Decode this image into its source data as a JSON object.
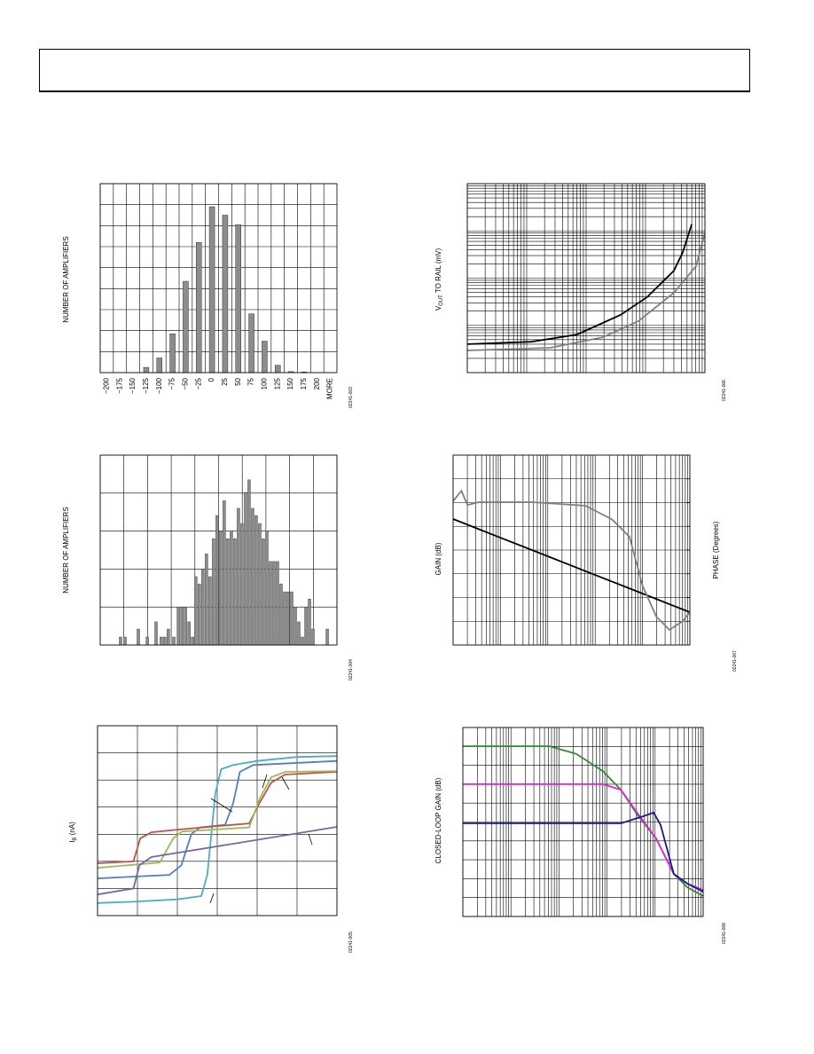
{
  "chart_data": [
    {
      "type": "bar",
      "y_label": "NUMBER OF AMPLIFIERS",
      "code": "02241-003",
      "categories": [
        "−200",
        "−175",
        "−150",
        "−125",
        "−100",
        "−75",
        "−50",
        "−25",
        "0",
        "25",
        "50",
        "75",
        "100",
        "125",
        "150",
        "175",
        "200",
        "MORE"
      ],
      "values": [
        0,
        0,
        0,
        0.25,
        0.7,
        1.85,
        4.35,
        6.2,
        7.9,
        7.5,
        7.05,
        2.8,
        1.5,
        0.35,
        0.05,
        0.03,
        0,
        0
      ],
      "color": "#8c8c8c",
      "ylim": [
        0,
        9
      ],
      "yticks": [
        0,
        1,
        2,
        3,
        4,
        5,
        6,
        7,
        8,
        9
      ],
      "grid": true
    },
    {
      "type": "bar",
      "y_label": "NUMBER OF AMPLIFIERS",
      "code": "02241-004",
      "x": [
        0.86,
        1.05,
        1.61,
        1.99,
        2.36,
        2.58,
        2.73,
        2.88,
        3.11,
        3.3,
        3.45,
        3.6,
        3.75,
        3.9,
        4.04,
        4.19,
        4.34,
        4.49,
        4.64,
        4.79,
        4.94,
        5.09,
        5.24,
        5.39,
        5.54,
        5.69,
        5.84,
        5.99,
        6.14,
        6.29,
        6.44,
        6.59,
        6.74,
        6.89,
        7.04,
        7.19,
        7.34,
        7.49,
        7.64,
        7.79,
        7.94,
        8.09,
        8.24,
        8.39,
        8.54,
        8.69,
        8.84,
        8.99,
        9.59
      ],
      "values": [
        0.21,
        0.21,
        0.42,
        0.21,
        0.61,
        0.21,
        0.21,
        0.42,
        0.21,
        1.0,
        1.0,
        1.0,
        0.61,
        0.21,
        1.8,
        1.61,
        2.0,
        2.4,
        1.8,
        2.8,
        3.41,
        3.01,
        3.8,
        2.8,
        3.01,
        2.8,
        3.6,
        3.2,
        4.02,
        4.35,
        3.6,
        3.41,
        3.2,
        2.8,
        3.01,
        2.2,
        2.2,
        2.2,
        1.61,
        1.4,
        1.4,
        1.4,
        1.0,
        0.61,
        0.21,
        1.0,
        1.21,
        0.42,
        0.42
      ],
      "color": "#8c8c8c",
      "xlim": [
        0,
        10
      ],
      "xticks": [
        0,
        1,
        2,
        3,
        4,
        5,
        6,
        7,
        8,
        9,
        10
      ],
      "ylim": [
        0,
        5
      ],
      "yticks": [
        0,
        1,
        2,
        3,
        4,
        5
      ],
      "grid": true
    },
    {
      "type": "line",
      "y_label": "I",
      "y_label_sub": "B",
      "y_label_rest": " (nA)",
      "code": "02241-005",
      "xlim": [
        0,
        6
      ],
      "xticks": [
        0,
        1,
        2,
        3,
        4,
        5,
        6
      ],
      "ylim": [
        0,
        7
      ],
      "yticks": [
        0,
        1,
        2,
        3,
        4,
        5,
        6,
        7
      ],
      "grid": true,
      "series": [
        {
          "color": "#4bacc6",
          "x": [
            0,
            1,
            2,
            2.6,
            2.75,
            2.85,
            2.95,
            3.1,
            3.4,
            4,
            5,
            6
          ],
          "values": [
            0.46,
            0.52,
            0.6,
            0.72,
            1.5,
            3,
            4.5,
            5.4,
            5.55,
            5.7,
            5.85,
            5.88
          ]
        },
        {
          "color": "#4f81bd",
          "x": [
            0,
            1.8,
            2.1,
            2.35,
            2.57,
            3.2,
            3.4,
            3.57,
            3.9,
            6
          ],
          "values": [
            1.37,
            1.5,
            1.85,
            3.0,
            3.25,
            3.35,
            4.15,
            5.3,
            5.55,
            5.7
          ]
        },
        {
          "color": "#c0504d",
          "x": [
            0,
            0.9,
            1.07,
            1.35,
            2.0,
            3.8,
            4.06,
            4.35,
            4.7,
            6
          ],
          "values": [
            1.93,
            2.0,
            2.85,
            3.07,
            3.17,
            3.4,
            4.15,
            4.9,
            5.2,
            5.3
          ]
        },
        {
          "color": "#9bbb59",
          "x": [
            0,
            1.56,
            1.9,
            2.12,
            3.8,
            4.06,
            4.35,
            4.7,
            6
          ],
          "values": [
            1.76,
            1.96,
            2.85,
            3.1,
            3.25,
            4.3,
            5.1,
            5.3,
            5.33
          ]
        },
        {
          "color": "#8064a2",
          "x": [
            0,
            0.9,
            1.05,
            1.35,
            6
          ],
          "values": [
            0.78,
            1.0,
            1.86,
            2.16,
            3.27
          ]
        }
      ]
    },
    {
      "type": "line",
      "y_label": "V",
      "y_label_sub": "OUT",
      "y_label_rest": " TO RAIL (mV)",
      "code": "02241-006",
      "xscale": "log",
      "yscale": "log",
      "xlim": [
        1,
        10000
      ],
      "xticks": [
        1,
        10,
        100,
        1000,
        10000
      ],
      "ylim": [
        1,
        10000
      ],
      "yticks": [
        1,
        10,
        100,
        1000,
        10000
      ],
      "grid": true,
      "series": [
        {
          "color": "#000000",
          "x": [
            1,
            12,
            70,
            380,
            1070,
            3000,
            4200,
            6000
          ],
          "values": [
            4,
            4.5,
            6.4,
            16.6,
            40,
            144,
            345,
            1380
          ]
        },
        {
          "color": "#808080",
          "x": [
            1,
            25,
            190,
            760,
            3000,
            7100,
            10000
          ],
          "values": [
            2.95,
            3.35,
            5.6,
            12.3,
            49,
            180,
            930
          ]
        }
      ]
    },
    {
      "type": "line",
      "y_label": "GAIN (dB)",
      "y2_label": "PHASE (Degrees)",
      "code": "02241-007",
      "xscale": "log",
      "xlim": [
        1,
        100000
      ],
      "xticks": [
        1,
        10,
        100,
        1000,
        10000,
        100000
      ],
      "ylim": [
        0,
        8
      ],
      "yticks": [
        0,
        1,
        2,
        3,
        4,
        5,
        6,
        7,
        8
      ],
      "y2lim": [
        0,
        8
      ],
      "y2ticks": [
        1,
        2,
        3,
        4,
        5,
        6,
        7
      ],
      "grid": true,
      "series": [
        {
          "color": "#000000",
          "x": [
            1,
            10,
            100,
            1000,
            10000,
            100000
          ],
          "values": [
            5.31,
            4.52,
            3.74,
            2.95,
            2.17,
            1.38
          ]
        },
        {
          "color": "#808080",
          "axis": "y2",
          "x": [
            1,
            1.5,
            2,
            3.5,
            46,
            620,
            2240,
            5300,
            10000,
            19500,
            37000,
            70000,
            100000
          ],
          "values": [
            6.06,
            6.5,
            5.9,
            6.02,
            6.02,
            5.87,
            5.3,
            4.56,
            2.5,
            1.2,
            0.64,
            1.0,
            1.38
          ]
        }
      ]
    },
    {
      "type": "line",
      "y_label": "CLOSED-LOOP GAIN (dB)",
      "code": "02241-008",
      "xscale": "log",
      "xlim": [
        1,
        100000
      ],
      "xticks": [
        1,
        10,
        100,
        1000,
        10000,
        100000
      ],
      "ylim": [
        0,
        10
      ],
      "yticks": [
        0,
        1,
        2,
        3,
        4,
        5,
        6,
        7,
        8,
        9,
        10
      ],
      "grid": true,
      "series": [
        {
          "color": "#2e8b2e",
          "x": [
            1,
            64,
            230,
            830,
            1950,
            4500,
            10500,
            24500,
            46500,
            100000
          ],
          "values": [
            9.01,
            9.01,
            8.6,
            7.68,
            6.7,
            5.3,
            4.13,
            2.25,
            1.55,
            1.08
          ]
        },
        {
          "color": "#e020e0",
          "x": [
            1,
            830,
            1950,
            4500,
            10500,
            24500,
            46500,
            100000
          ],
          "values": [
            7.0,
            7.0,
            6.7,
            5.4,
            4.13,
            2.25,
            1.74,
            1.4
          ]
        },
        {
          "color": "#1a1a8c",
          "x": [
            1,
            1950,
            5600,
            9300,
            13000,
            24500,
            46500,
            100000
          ],
          "values": [
            4.93,
            4.93,
            5.3,
            5.5,
            4.84,
            2.25,
            1.74,
            1.31
          ]
        }
      ]
    }
  ]
}
